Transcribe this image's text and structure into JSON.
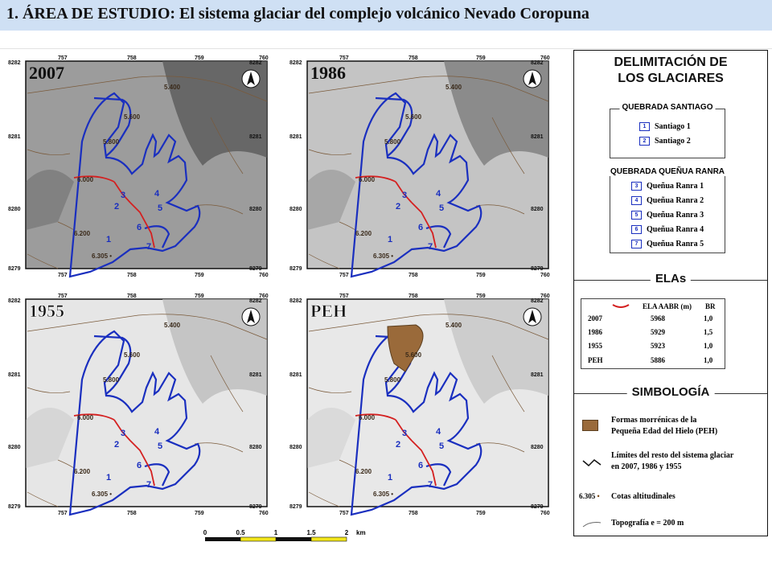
{
  "header": {
    "title": "1. ÁREA DE ESTUDIO: El sistema glaciar del complejo volcánico Nevado Coropuna"
  },
  "panels": [
    {
      "year": "2007"
    },
    {
      "year": "1986"
    },
    {
      "year": "1955"
    },
    {
      "year": "PEH"
    }
  ],
  "map_labels": {
    "x_ticks": [
      "757",
      "758",
      "759",
      "760"
    ],
    "y_top": "8282",
    "y_ticks": [
      "8281",
      "8280"
    ],
    "y_bottom": "8279",
    "contours": [
      "5.400",
      "5.600",
      "5.800",
      "6.000",
      "6.200"
    ],
    "spot_height": "6.305",
    "glacier_numbers": [
      "1",
      "2",
      "3",
      "4",
      "5",
      "6",
      "7"
    ]
  },
  "legend": {
    "title_line1": "DELIMITACIÓN DE",
    "title_line2": "LOS GLACIARES",
    "group1_title": "QUEBRADA SANTIAGO",
    "group1_items": [
      {
        "num": "1",
        "label": "Santiago 1"
      },
      {
        "num": "2",
        "label": "Santiago 2"
      }
    ],
    "group2_title": "QUEBRADA QUEÑUA RANRA",
    "group2_items": [
      {
        "num": "3",
        "label": "Queñua Ranra 1"
      },
      {
        "num": "4",
        "label": "Queñua Ranra 2"
      },
      {
        "num": "5",
        "label": "Queñua Ranra 3"
      },
      {
        "num": "6",
        "label": "Queñua Ranra 4"
      },
      {
        "num": "7",
        "label": "Queñua Ranra 5"
      }
    ],
    "elas_title": "ELAs",
    "ela_table": {
      "header_label": "ELA AABR (m)",
      "header_br": "BR",
      "rows": [
        {
          "year": "2007",
          "ela": "5968",
          "br": "1,0"
        },
        {
          "year": "1986",
          "ela": "5929",
          "br": "1,5"
        },
        {
          "year": "1955",
          "ela": "5923",
          "br": "1,0"
        },
        {
          "year": "PEH",
          "ela": "5886",
          "br": "1,0"
        }
      ]
    },
    "simbologia_title": "SIMBOLOGÍA",
    "sym_moraine_line1": "Formas morrénicas de la",
    "sym_moraine_line2": "Pequeña Edad del Hielo (PEH)",
    "sym_limits_line1": "Límites del resto del sistema glaciar",
    "sym_limits_line2": "en 2007, 1986 y 1955",
    "sym_cotas_sample": "6.305",
    "sym_cotas": "Cotas altitudinales",
    "sym_topo": "Topografía e = 200 m",
    "colors": {
      "glacier": "#1a2fbf",
      "ela": "#d42020",
      "moraine": "#9a6a3a"
    }
  },
  "scale": {
    "ticks": [
      "0",
      "0.5",
      "1",
      "1.5",
      "2"
    ],
    "unit": "km"
  }
}
